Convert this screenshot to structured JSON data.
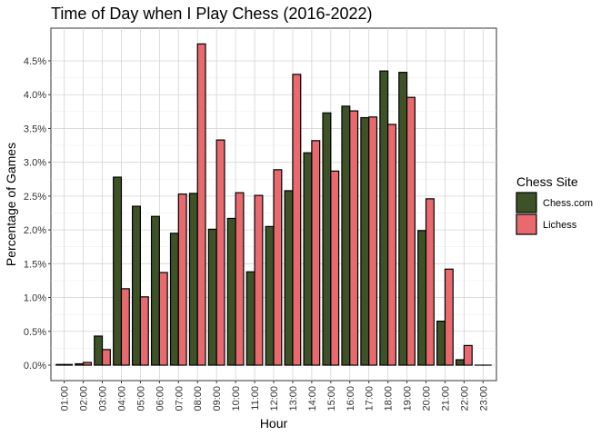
{
  "chart_data": {
    "type": "bar",
    "title": "Time of Day when I Play Chess (2016-2022)",
    "xlabel": "Hour",
    "ylabel": "Percentage of Games",
    "ylim": [
      0,
      0.049
    ],
    "yticks": [
      0,
      0.005,
      0.01,
      0.015,
      0.02,
      0.025,
      0.03,
      0.035,
      0.04,
      0.045
    ],
    "ytick_labels": [
      "0.0%",
      "0.5%",
      "1.0%",
      "1.5%",
      "2.0%",
      "2.5%",
      "3.0%",
      "3.5%",
      "4.0%",
      "4.5%"
    ],
    "grid": true,
    "legend_title": "Chess Site",
    "legend_position": "right",
    "categories": [
      "01:00",
      "02:00",
      "03:00",
      "04:00",
      "05:00",
      "06:00",
      "07:00",
      "08:00",
      "09:00",
      "10:00",
      "11:00",
      "12:00",
      "13:00",
      "14:00",
      "15:00",
      "16:00",
      "17:00",
      "18:00",
      "19:00",
      "20:00",
      "21:00",
      "22:00",
      "23:00"
    ],
    "series": [
      {
        "name": "Chess.com",
        "color": "#3d5226",
        "values": [
          0.0001,
          0.0002,
          0.0043,
          0.0278,
          0.0235,
          0.022,
          0.0195,
          0.0254,
          0.0201,
          0.0217,
          0.0138,
          0.0205,
          0.0258,
          0.0314,
          0.0373,
          0.0383,
          0.0366,
          0.0435,
          0.0433,
          0.0199,
          0.0065,
          0.0008,
          0.0
        ]
      },
      {
        "name": "Lichess",
        "color": "#e86a6e",
        "values": [
          0.0001,
          0.0004,
          0.0023,
          0.0113,
          0.0101,
          0.0137,
          0.0253,
          0.0475,
          0.0333,
          0.0255,
          0.0251,
          0.0289,
          0.043,
          0.0332,
          0.0287,
          0.0376,
          0.0367,
          0.0356,
          0.0396,
          0.0246,
          0.0142,
          0.0029,
          0.0
        ]
      }
    ]
  }
}
